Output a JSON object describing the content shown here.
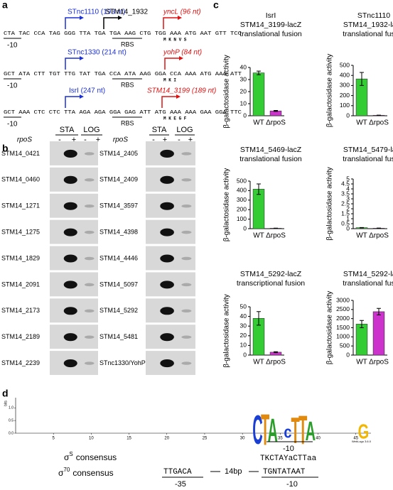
{
  "panel_labels": [
    "a",
    "b",
    "c",
    "d"
  ],
  "panel_a": {
    "rows": [
      {
        "sequence": "CTA TAC CCA TAG GGG TTA TGA TGA AAG CTG TGG AAA ATG AAT GTT TCC",
        "srna": "STnc1110 (193 nt)",
        "gene": "STM14_1932",
        "orf": "yncL (96 nt)",
        "rbs": "RBS",
        "minus10": "-10",
        "aa": "M   K   N   V   S"
      },
      {
        "sequence": "GCT ATA CTT TGT TTG TAT TGA CCA ATA AAG GGA CCA AAA ATG AAA ATT",
        "srna": "STnc1330 (214 nt)",
        "orf": "yohP (84 nt)",
        "rbs": "RBS",
        "minus10": "-10",
        "aa": "M   K   I"
      },
      {
        "sequence": "GCT AAA CTC CTC TTA AGA AGA GGA GAG ATT ATG AAA AAA GAA GGA TTC",
        "srna": "IsrI (247 nt)",
        "orf": "STM14_3199 (189 nt)",
        "rbs": "RBS",
        "minus10": "-10",
        "aa": "M   K   E   G   F"
      }
    ]
  },
  "panel_b": {
    "headers": [
      "STA",
      "LOG"
    ],
    "rpos": "rpoS",
    "signs": [
      "-",
      "+",
      "-",
      "+"
    ],
    "left_genes": [
      "STM14_0421",
      "STM14_0460",
      "STM14_1271",
      "STM14_1275",
      "STM14_1829",
      "STM14_2091",
      "STM14_2173",
      "STM14_2189",
      "STM14_2239"
    ],
    "right_genes": [
      "STM14_2405",
      "STM14_2409",
      "STM14_3597",
      "STM14_4398",
      "STM14_4446",
      "STM14_5097",
      "STM14_5292",
      "STM14_5481",
      "STnc1330/YohP"
    ]
  },
  "chart_data": [
    {
      "type": "bar",
      "title": [
        "IsrI",
        "STM14_3199-lacZ",
        "translational fusion"
      ],
      "ylabel": "β-galactosidase activity",
      "categories": [
        "WT",
        "ΔrpoS"
      ],
      "colors": [
        "#33cc33",
        "#cc33cc"
      ],
      "values": [
        35.5,
        4
      ],
      "errors": [
        1.5,
        0.4
      ],
      "ylim": [
        0,
        40
      ],
      "yticks": [
        0,
        10,
        20,
        30,
        40
      ]
    },
    {
      "type": "bar",
      "title": [
        "STnc1110",
        "STM14_1932-lacZ",
        "translational fusion"
      ],
      "ylabel": "β-galactosidase activity",
      "categories": [
        "WT",
        "ΔrpoS"
      ],
      "colors": [
        "#33cc33",
        "#cc33cc"
      ],
      "values": [
        365,
        5
      ],
      "errors": [
        65,
        1
      ],
      "ylim": [
        0,
        500
      ],
      "yticks": [
        0,
        100,
        200,
        300,
        400,
        500
      ]
    },
    {
      "type": "bar",
      "title": [
        "STM14_5469-lacZ",
        "translational fusion"
      ],
      "ylabel": "β-galactosidase activity",
      "categories": [
        "WT",
        "ΔrpoS"
      ],
      "colors": [
        "#33cc33",
        "#cc33cc"
      ],
      "values": [
        415,
        5
      ],
      "errors": [
        55,
        1
      ],
      "ylim": [
        0,
        500
      ],
      "yticks": [
        0,
        100,
        200,
        300,
        400,
        500
      ]
    },
    {
      "type": "bar",
      "title": [
        "STM14_5479-lacZ",
        "translational fusion"
      ],
      "ylabel": "β-galactosidase activity",
      "categories": [
        "WT",
        "ΔrpoS"
      ],
      "colors": [
        "#33cc33",
        "#cc33cc"
      ],
      "values": [
        0.1,
        0.05
      ],
      "errors": [
        0.02,
        0.01
      ],
      "ylim": [
        0,
        5
      ],
      "yticks": [
        0,
        0.5,
        1,
        1.5,
        2,
        2.5,
        3,
        3.5,
        4,
        4.5,
        5
      ]
    },
    {
      "type": "bar",
      "title": [
        "STM14_5292-lacZ",
        "transcriptional fusion"
      ],
      "ylabel": "β-galactosidase activity",
      "categories": [
        "WT",
        "ΔrpoS"
      ],
      "colors": [
        "#33cc33",
        "#cc33cc"
      ],
      "values": [
        38,
        3
      ],
      "errors": [
        7,
        0.5
      ],
      "ylim": [
        0,
        50
      ],
      "yticks": [
        0,
        10,
        20,
        30,
        40,
        50
      ]
    },
    {
      "type": "bar",
      "title": [
        "STM14_5292-lacZ",
        "translational fusion"
      ],
      "ylabel": "β-galactosidase activity",
      "categories": [
        "WT",
        "ΔrpoS"
      ],
      "colors": [
        "#33cc33",
        "#cc33cc"
      ],
      "values": [
        1700,
        2380
      ],
      "errors": [
        200,
        180
      ],
      "ylim": [
        0,
        3000
      ],
      "yticks": [
        0,
        500,
        1000,
        1500,
        2000,
        2500,
        3000
      ]
    }
  ],
  "panel_d": {
    "ylabel": "bits",
    "yticks": [
      {
        "value": 0,
        "label": "0.0"
      },
      {
        "value": 0.5,
        "label": "0.5"
      },
      {
        "value": 1,
        "label": "1.0"
      }
    ],
    "ylim": [
      0,
      1.4
    ],
    "xlim": [
      0,
      47
    ],
    "xticks": [
      5,
      10,
      15,
      20,
      25,
      30,
      35,
      40,
      45
    ],
    "letters": [
      {
        "letter": "C",
        "position": 32,
        "bits": 1.2
      },
      {
        "letter": "T",
        "position": 33,
        "bits": 1.3
      },
      {
        "letter": "A",
        "position": 34,
        "bits": 1.0
      },
      {
        "letter": "c",
        "position": 36,
        "bits": 0.5
      },
      {
        "letter": "T",
        "position": 37,
        "bits": 1.1
      },
      {
        "letter": "T",
        "position": 38,
        "bits": 1.2
      },
      {
        "letter": "A",
        "position": 39,
        "bits": 0.8
      },
      {
        "letter": "G",
        "position": 46,
        "bits": 0.6
      }
    ],
    "minus10": "-10",
    "credit": "WebLogo 3.6.0",
    "sigma_s": {
      "symbol": "σ",
      "sup": "S",
      "label": "consensus",
      "seq": "TKCTAYaCTTaa"
    },
    "sigma_70": {
      "symbol": "σ",
      "sup": "70",
      "label": "consensus",
      "box35": "TTGACA",
      "spacer": "14bp",
      "box10": "TGNTATAAT",
      "minus35": "-35",
      "minus10": "-10"
    }
  }
}
